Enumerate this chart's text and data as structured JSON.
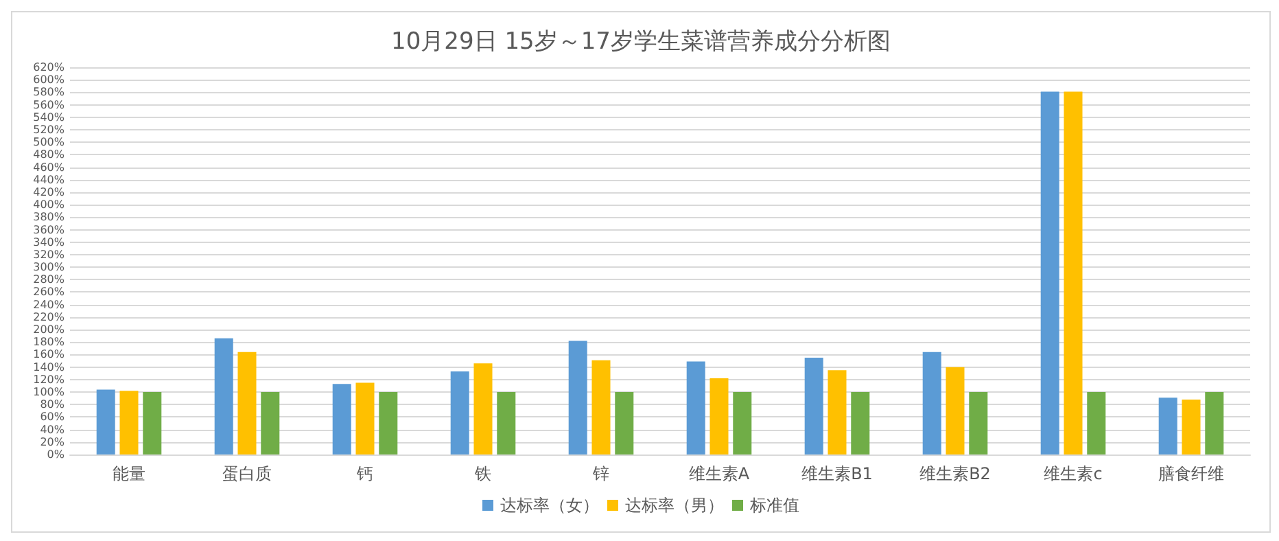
{
  "chart_data": {
    "type": "bar",
    "title": "10月29日 15岁～17岁学生菜谱营养成分分析图",
    "categories": [
      "能量",
      "蛋白质",
      "钙",
      "铁",
      "锌",
      "维生素A",
      "维生素B1",
      "维生素B2",
      "维生素c",
      "膳食纤维"
    ],
    "series": [
      {
        "name": "达标率（女）",
        "color": "#5b9bd5",
        "values": [
          104,
          186,
          113,
          133,
          182,
          149,
          155,
          164,
          581,
          91
        ]
      },
      {
        "name": "达标率（男）",
        "color": "#ffc000",
        "values": [
          102,
          164,
          115,
          146,
          151,
          122,
          135,
          140,
          581,
          88
        ]
      },
      {
        "name": "标准值",
        "color": "#70ad47",
        "values": [
          100,
          100,
          100,
          100,
          100,
          100,
          100,
          100,
          100,
          100
        ]
      }
    ],
    "ylim": [
      0,
      620
    ],
    "yticks": [
      {
        "value": 0,
        "label": "0%"
      },
      {
        "value": 20,
        "label": "20%"
      },
      {
        "value": 40,
        "label": "40%"
      },
      {
        "value": 60,
        "label": "60%"
      },
      {
        "value": 80,
        "label": "80%"
      },
      {
        "value": 100,
        "label": "100%"
      },
      {
        "value": 120,
        "label": "120%"
      },
      {
        "value": 140,
        "label": "140%"
      },
      {
        "value": 160,
        "label": "160%"
      },
      {
        "value": 180,
        "label": "180%"
      },
      {
        "value": 200,
        "label": "200%"
      },
      {
        "value": 220,
        "label": "220%"
      },
      {
        "value": 240,
        "label": "240%"
      },
      {
        "value": 260,
        "label": "260%"
      },
      {
        "value": 280,
        "label": "280%"
      },
      {
        "value": 300,
        "label": "300%"
      },
      {
        "value": 320,
        "label": "320%"
      },
      {
        "value": 340,
        "label": "340%"
      },
      {
        "value": 360,
        "label": "360%"
      },
      {
        "value": 380,
        "label": "380%"
      },
      {
        "value": 400,
        "label": "400%"
      },
      {
        "value": 420,
        "label": "420%"
      },
      {
        "value": 440,
        "label": "440%"
      },
      {
        "value": 460,
        "label": "460%"
      },
      {
        "value": 480,
        "label": "480%"
      },
      {
        "value": 500,
        "label": "500%"
      },
      {
        "value": 520,
        "label": "520%"
      },
      {
        "value": 540,
        "label": "540%"
      },
      {
        "value": 560,
        "label": "560%"
      },
      {
        "value": 580,
        "label": "580%"
      },
      {
        "value": 600,
        "label": "600%"
      },
      {
        "value": 620,
        "label": "620%"
      }
    ],
    "grid": "y",
    "legend": "bottom"
  }
}
